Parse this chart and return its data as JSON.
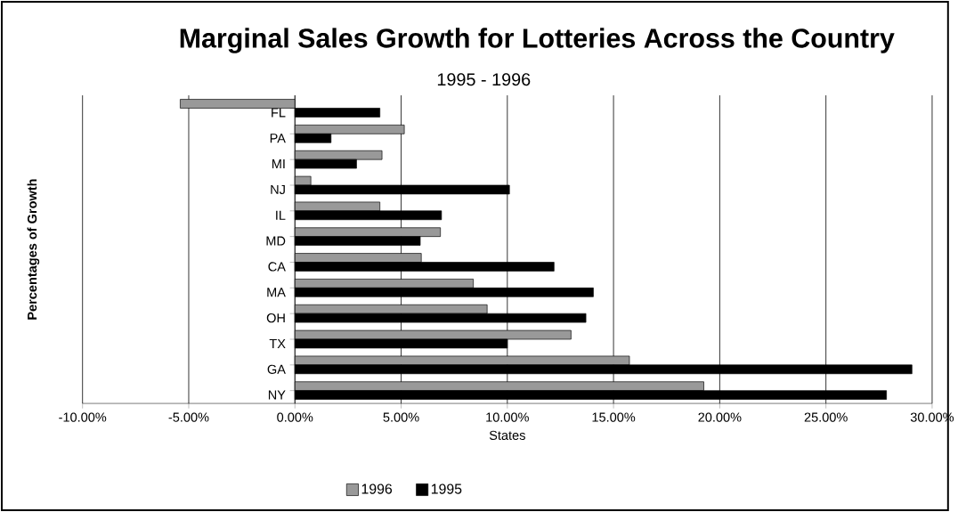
{
  "chart_data": {
    "type": "bar",
    "orientation": "horizontal",
    "title": "Marginal Sales Growth for Lotteries Across the Country",
    "subtitle": "1995 - 1996",
    "xlabel": "States",
    "ylabel": "Percentages of Growth",
    "categories": [
      "FL",
      "PA",
      "MI",
      "NJ",
      "IL",
      "MD",
      "CA",
      "MA",
      "OH",
      "TX",
      "GA",
      "NY"
    ],
    "series": [
      {
        "name": "1996",
        "color": "#999999",
        "values": [
          -5.4,
          5.15,
          4.1,
          0.75,
          4.0,
          6.85,
          5.95,
          8.4,
          9.05,
          13.0,
          15.75,
          19.25
        ]
      },
      {
        "name": "1995",
        "color": "#000000",
        "values": [
          4.0,
          1.7,
          2.9,
          10.1,
          6.9,
          5.9,
          12.2,
          14.05,
          13.7,
          10.0,
          29.05,
          27.85
        ]
      }
    ],
    "xlim": [
      -10,
      30
    ],
    "xticks": [
      {
        "value": -10,
        "label": "-10.00%"
      },
      {
        "value": -5,
        "label": "-5.00%"
      },
      {
        "value": 0,
        "label": "0.00%"
      },
      {
        "value": 5,
        "label": "5.00%"
      },
      {
        "value": 10,
        "label": "10.00%"
      },
      {
        "value": 15,
        "label": "15.00%"
      },
      {
        "value": 20,
        "label": "20.00%"
      },
      {
        "value": 25,
        "label": "25.00%"
      },
      {
        "value": 30,
        "label": "30.00%"
      }
    ],
    "grid": "x",
    "legend": "bottom"
  }
}
